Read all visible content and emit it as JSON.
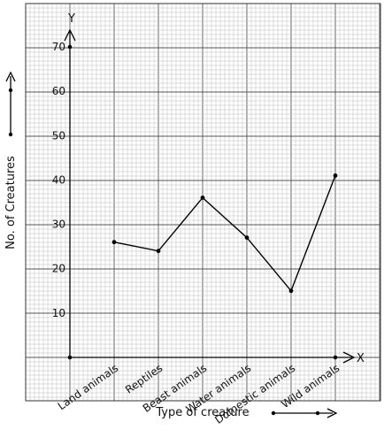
{
  "chart_data": {
    "type": "line",
    "title": "",
    "xlabel": "Type of creature",
    "ylabel": "No. of Creatures",
    "x_axis_letter": "X",
    "y_axis_letter": "Y",
    "categories": [
      "Land animals",
      "Reptiles",
      "Beast animals",
      "Water animals",
      "Domestic animals",
      "Wild animals"
    ],
    "values": [
      26,
      24,
      36,
      27,
      15,
      41
    ],
    "ylim": [
      0,
      70
    ],
    "yticks": [
      10,
      20,
      30,
      40,
      50,
      60,
      70
    ],
    "grid": true,
    "legend": "none",
    "colors": {
      "line": "#000000",
      "grid_minor": "#bdbdbd",
      "grid_major": "#555555"
    }
  }
}
